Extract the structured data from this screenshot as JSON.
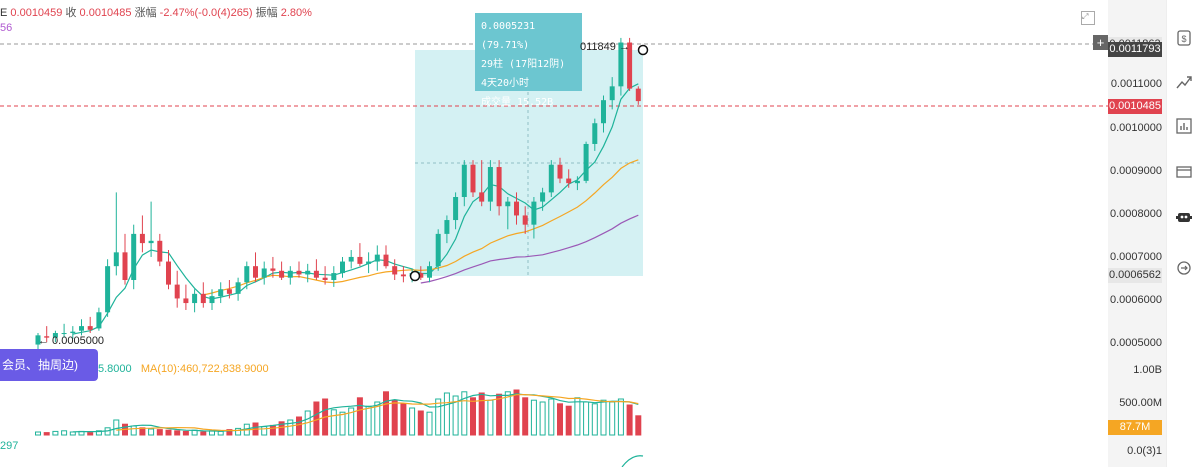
{
  "header": {
    "prefix": "E",
    "open_value": "0.0010459",
    "close_label": "收",
    "close_value": "0.0010485",
    "change_label": "涨幅",
    "change_value": "-2.47%(-0.0(4)265)",
    "amp_label": "振幅",
    "amp_value": "2.80%",
    "sub_value": "56"
  },
  "tooltip": {
    "line1": "0.0005231 (79.71%)",
    "line2": "29柱 (17阳12阴)",
    "line3": "4天20小时",
    "line4": "成交量 15.52B"
  },
  "markers": {
    "high_label": "011849 →",
    "low_label": "← 0.0005000"
  },
  "badge": {
    "text": "会员、抽周边)"
  },
  "volume_legend": {
    "ma5": "5.8000",
    "ma10": "MA(10):460,722,838.9000",
    "left_value": "297"
  },
  "price_axis": {
    "labels": [
      "0.0011000",
      "0.0010000",
      "0.0009000",
      "0.0008000",
      "0.0007000",
      "0.0006000",
      "0.0005000"
    ],
    "pill_top": "0.0011863",
    "pill_high": "0.0011793",
    "pill_current": "0.0010485",
    "pill_range": "0.0006562"
  },
  "volume_axis": {
    "labels": [
      "1.00B",
      "500.00M",
      "0.0(3)1"
    ],
    "pill_current": "87.7M"
  },
  "colors": {
    "up": "#1fb39a",
    "down": "#e0434f",
    "ma_fast": "#1fb39a",
    "ma_mid": "#f5a623",
    "ma_slow": "#9b59b6",
    "selection": "#c6ecef"
  },
  "toolbar_icons": [
    "dollar-icon",
    "trend-icon",
    "bar-chart-icon",
    "card-icon",
    "robot-icon",
    "refresh-icon"
  ],
  "chart_data": {
    "type": "candlestick",
    "ylim": [
      0.00048,
      0.0012
    ],
    "candles": [
      {
        "o": 0.00052,
        "h": 0.000545,
        "l": 0.00049,
        "c": 0.00054
      },
      {
        "o": 0.000538,
        "h": 0.00056,
        "l": 0.000525,
        "c": 0.000535
      },
      {
        "o": 0.000535,
        "h": 0.00055,
        "l": 0.000525,
        "c": 0.000545
      },
      {
        "o": 0.000545,
        "h": 0.000565,
        "l": 0.000535,
        "c": 0.000545
      },
      {
        "o": 0.000545,
        "h": 0.00056,
        "l": 0.000532,
        "c": 0.000548
      },
      {
        "o": 0.00055,
        "h": 0.000575,
        "l": 0.00054,
        "c": 0.00056
      },
      {
        "o": 0.00056,
        "h": 0.00058,
        "l": 0.000545,
        "c": 0.000552
      },
      {
        "o": 0.000555,
        "h": 0.0006,
        "l": 0.00055,
        "c": 0.00059
      },
      {
        "o": 0.00059,
        "h": 0.000705,
        "l": 0.00058,
        "c": 0.00069
      },
      {
        "o": 0.00069,
        "h": 0.00085,
        "l": 0.00067,
        "c": 0.00072
      },
      {
        "o": 0.00072,
        "h": 0.00076,
        "l": 0.00065,
        "c": 0.00066
      },
      {
        "o": 0.00066,
        "h": 0.00078,
        "l": 0.00064,
        "c": 0.00076
      },
      {
        "o": 0.00076,
        "h": 0.0008,
        "l": 0.00072,
        "c": 0.00074
      },
      {
        "o": 0.00074,
        "h": 0.00083,
        "l": 0.00071,
        "c": 0.000745
      },
      {
        "o": 0.000745,
        "h": 0.00076,
        "l": 0.00069,
        "c": 0.0007
      },
      {
        "o": 0.0007,
        "h": 0.000725,
        "l": 0.00064,
        "c": 0.00065
      },
      {
        "o": 0.00065,
        "h": 0.00068,
        "l": 0.0006,
        "c": 0.00062
      },
      {
        "o": 0.00062,
        "h": 0.00065,
        "l": 0.000595,
        "c": 0.00061
      },
      {
        "o": 0.00061,
        "h": 0.00064,
        "l": 0.00059,
        "c": 0.00063
      },
      {
        "o": 0.00063,
        "h": 0.000655,
        "l": 0.0006,
        "c": 0.00061
      },
      {
        "o": 0.00061,
        "h": 0.00064,
        "l": 0.000595,
        "c": 0.000625
      },
      {
        "o": 0.000625,
        "h": 0.000655,
        "l": 0.00061,
        "c": 0.00064
      },
      {
        "o": 0.00064,
        "h": 0.00066,
        "l": 0.00062,
        "c": 0.00063
      },
      {
        "o": 0.00063,
        "h": 0.000665,
        "l": 0.000615,
        "c": 0.000655
      },
      {
        "o": 0.000655,
        "h": 0.0007,
        "l": 0.00064,
        "c": 0.00069
      },
      {
        "o": 0.00069,
        "h": 0.00072,
        "l": 0.000655,
        "c": 0.000665
      },
      {
        "o": 0.000665,
        "h": 0.0007,
        "l": 0.00065,
        "c": 0.000685
      },
      {
        "o": 0.000685,
        "h": 0.00071,
        "l": 0.000665,
        "c": 0.00068
      },
      {
        "o": 0.00068,
        "h": 0.0007,
        "l": 0.00066,
        "c": 0.000665
      },
      {
        "o": 0.000665,
        "h": 0.00069,
        "l": 0.00065,
        "c": 0.00068
      },
      {
        "o": 0.00068,
        "h": 0.0007,
        "l": 0.000665,
        "c": 0.000672
      },
      {
        "o": 0.000672,
        "h": 0.000695,
        "l": 0.000655,
        "c": 0.00068
      },
      {
        "o": 0.00068,
        "h": 0.000705,
        "l": 0.00066,
        "c": 0.000665
      },
      {
        "o": 0.000665,
        "h": 0.00069,
        "l": 0.00065,
        "c": 0.00066
      },
      {
        "o": 0.00066,
        "h": 0.00069,
        "l": 0.000645,
        "c": 0.000675
      },
      {
        "o": 0.000675,
        "h": 0.00071,
        "l": 0.000665,
        "c": 0.0007
      },
      {
        "o": 0.0007,
        "h": 0.000725,
        "l": 0.000685,
        "c": 0.00071
      },
      {
        "o": 0.00071,
        "h": 0.00074,
        "l": 0.00069,
        "c": 0.000695
      },
      {
        "o": 0.000695,
        "h": 0.00072,
        "l": 0.000675,
        "c": 0.0007
      },
      {
        "o": 0.0007,
        "h": 0.000735,
        "l": 0.00068,
        "c": 0.000715
      },
      {
        "o": 0.000715,
        "h": 0.000735,
        "l": 0.000685,
        "c": 0.00069
      },
      {
        "o": 0.00069,
        "h": 0.000705,
        "l": 0.00066,
        "c": 0.000672
      },
      {
        "o": 0.000672,
        "h": 0.00069,
        "l": 0.000655,
        "c": 0.000668
      },
      {
        "o": 0.000668,
        "h": 0.000685,
        "l": 0.000655,
        "c": 0.000675
      },
      {
        "o": 0.000675,
        "h": 0.00069,
        "l": 0.00066,
        "c": 0.000665
      },
      {
        "o": 0.000665,
        "h": 0.0007,
        "l": 0.000655,
        "c": 0.00069
      },
      {
        "o": 0.00069,
        "h": 0.00077,
        "l": 0.00068,
        "c": 0.00076
      },
      {
        "o": 0.00076,
        "h": 0.0008,
        "l": 0.00074,
        "c": 0.00079
      },
      {
        "o": 0.00079,
        "h": 0.00085,
        "l": 0.00077,
        "c": 0.00084
      },
      {
        "o": 0.00084,
        "h": 0.00092,
        "l": 0.00082,
        "c": 0.00091
      },
      {
        "o": 0.00091,
        "h": 0.00092,
        "l": 0.00084,
        "c": 0.00085
      },
      {
        "o": 0.00085,
        "h": 0.00092,
        "l": 0.00082,
        "c": 0.00083
      },
      {
        "o": 0.00083,
        "h": 0.00092,
        "l": 0.00081,
        "c": 0.000905
      },
      {
        "o": 0.000905,
        "h": 0.00092,
        "l": 0.0008,
        "c": 0.00082
      },
      {
        "o": 0.00082,
        "h": 0.00084,
        "l": 0.00077,
        "c": 0.00083
      },
      {
        "o": 0.00083,
        "h": 0.00085,
        "l": 0.00078,
        "c": 0.0008
      },
      {
        "o": 0.0008,
        "h": 0.00082,
        "l": 0.00076,
        "c": 0.00078
      },
      {
        "o": 0.00078,
        "h": 0.00084,
        "l": 0.00075,
        "c": 0.00083
      },
      {
        "o": 0.00083,
        "h": 0.00086,
        "l": 0.00081,
        "c": 0.00085
      },
      {
        "o": 0.00085,
        "h": 0.00092,
        "l": 0.00084,
        "c": 0.00091
      },
      {
        "o": 0.00091,
        "h": 0.000925,
        "l": 0.00087,
        "c": 0.00088
      },
      {
        "o": 0.00088,
        "h": 0.0009,
        "l": 0.00086,
        "c": 0.00087
      },
      {
        "o": 0.00087,
        "h": 0.000885,
        "l": 0.000855,
        "c": 0.000875
      },
      {
        "o": 0.000875,
        "h": 0.00096,
        "l": 0.00087,
        "c": 0.000955
      },
      {
        "o": 0.000955,
        "h": 0.00101,
        "l": 0.00094,
        "c": 0.001
      },
      {
        "o": 0.001,
        "h": 0.00106,
        "l": 0.00098,
        "c": 0.00105
      },
      {
        "o": 0.00105,
        "h": 0.0011,
        "l": 0.00103,
        "c": 0.00108
      },
      {
        "o": 0.00108,
        "h": 0.001185,
        "l": 0.00106,
        "c": 0.001175
      },
      {
        "o": 0.001175,
        "h": 0.001185,
        "l": 0.00107,
        "c": 0.001075
      },
      {
        "o": 0.001075,
        "h": 0.00108,
        "l": 0.00104,
        "c": 0.001048
      }
    ],
    "volumes": [
      0.05,
      0.04,
      0.06,
      0.07,
      0.05,
      0.06,
      0.04,
      0.07,
      0.12,
      0.25,
      0.18,
      0.15,
      0.12,
      0.1,
      0.09,
      0.08,
      0.07,
      0.06,
      0.08,
      0.05,
      0.07,
      0.06,
      0.09,
      0.11,
      0.18,
      0.2,
      0.14,
      0.16,
      0.22,
      0.25,
      0.3,
      0.4,
      0.55,
      0.6,
      0.42,
      0.38,
      0.45,
      0.62,
      0.48,
      0.55,
      0.72,
      0.58,
      0.52,
      0.45,
      0.4,
      0.38,
      0.6,
      0.7,
      0.65,
      0.72,
      0.62,
      0.7,
      0.58,
      0.68,
      0.72,
      0.75,
      0.62,
      0.58,
      0.55,
      0.6,
      0.52,
      0.48,
      0.62,
      0.55,
      0.52,
      0.58,
      0.55,
      0.6,
      0.5,
      0.32
    ]
  }
}
